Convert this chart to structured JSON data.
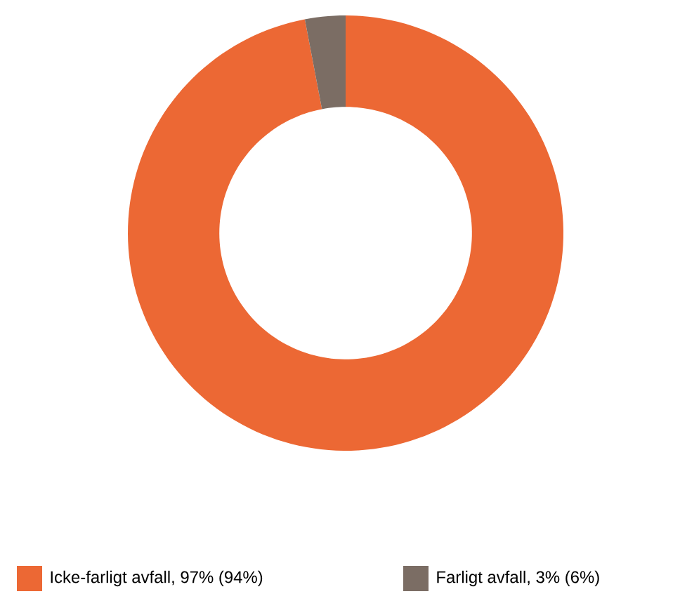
{
  "chart_data": {
    "type": "donut",
    "categories": [
      "Icke-farligt avfall, 97% (94%)",
      "Farligt avfall, 3% (6%)"
    ],
    "values": [
      97,
      3
    ],
    "colors": [
      "#ec6834",
      "#7b6d64"
    ],
    "legend": "bottom"
  }
}
